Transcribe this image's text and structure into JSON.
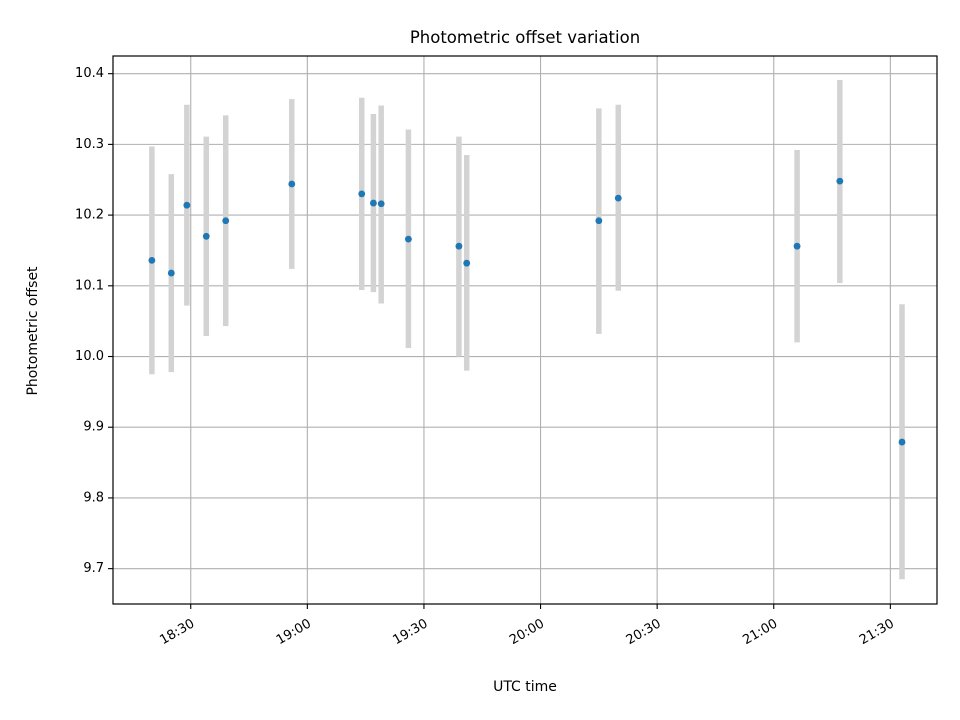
{
  "chart_data": {
    "type": "scatter",
    "title": "Photometric offset variation",
    "xlabel": "UTC time",
    "ylabel": "Photometric offset",
    "xlim": [
      "18:10",
      "21:42"
    ],
    "ylim": [
      9.65,
      10.425
    ],
    "grid": true,
    "x_ticks": [
      "18:30",
      "19:00",
      "19:30",
      "20:00",
      "20:30",
      "21:00",
      "21:30"
    ],
    "y_ticks": [
      9.7,
      9.8,
      9.9,
      10.0,
      10.1,
      10.2,
      10.3,
      10.4
    ],
    "y_tick_labels": [
      "9.7",
      "9.8",
      "9.9",
      "10.0",
      "10.1",
      "10.2",
      "10.3",
      "10.4"
    ],
    "points": [
      {
        "x": "18:20",
        "y": 10.136,
        "y_low": 9.975,
        "y_high": 10.297
      },
      {
        "x": "18:25",
        "y": 10.118,
        "y_low": 9.978,
        "y_high": 10.258
      },
      {
        "x": "18:29",
        "y": 10.214,
        "y_low": 10.072,
        "y_high": 10.356
      },
      {
        "x": "18:34",
        "y": 10.17,
        "y_low": 10.029,
        "y_high": 10.311
      },
      {
        "x": "18:39",
        "y": 10.192,
        "y_low": 10.043,
        "y_high": 10.341
      },
      {
        "x": "18:56",
        "y": 10.244,
        "y_low": 10.124,
        "y_high": 10.364
      },
      {
        "x": "19:14",
        "y": 10.23,
        "y_low": 10.094,
        "y_high": 10.366
      },
      {
        "x": "19:17",
        "y": 10.217,
        "y_low": 10.091,
        "y_high": 10.343
      },
      {
        "x": "19:19",
        "y": 10.216,
        "y_low": 10.075,
        "y_high": 10.355
      },
      {
        "x": "19:26",
        "y": 10.166,
        "y_low": 10.012,
        "y_high": 10.321
      },
      {
        "x": "19:39",
        "y": 10.156,
        "y_low": 10.0,
        "y_high": 10.311
      },
      {
        "x": "19:41",
        "y": 10.132,
        "y_low": 9.98,
        "y_high": 10.285
      },
      {
        "x": "20:15",
        "y": 10.192,
        "y_low": 10.032,
        "y_high": 10.351
      },
      {
        "x": "20:20",
        "y": 10.224,
        "y_low": 10.093,
        "y_high": 10.356
      },
      {
        "x": "21:06",
        "y": 10.156,
        "y_low": 10.02,
        "y_high": 10.292
      },
      {
        "x": "21:17",
        "y": 10.248,
        "y_low": 10.104,
        "y_high": 10.391
      },
      {
        "x": "21:33",
        "y": 9.879,
        "y_low": 9.685,
        "y_high": 10.074
      }
    ],
    "colors": {
      "marker": "#1f77b4",
      "errorbar": "#d3d3d3",
      "grid": "#b0b0b0",
      "axes": "#000000"
    }
  }
}
